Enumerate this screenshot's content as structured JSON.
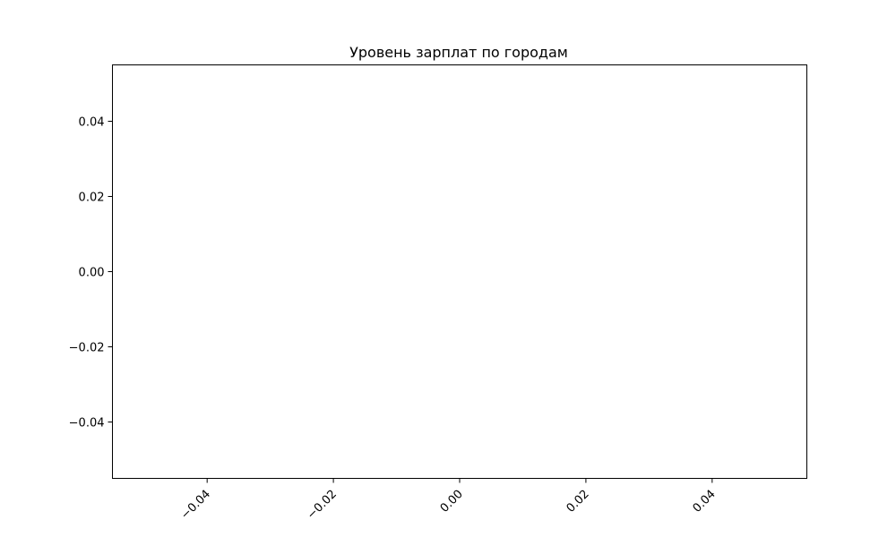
{
  "chart_data": {
    "type": "bar",
    "title": "Уровень зарплат по городам",
    "xlabel": "",
    "ylabel": "",
    "categories": [],
    "values": [],
    "xlim": [
      -0.055,
      0.055
    ],
    "ylim": [
      -0.055,
      0.055
    ],
    "x_ticks": [
      -0.04,
      -0.02,
      0.0,
      0.02,
      0.04
    ],
    "x_tick_labels": [
      "−0.04",
      "−0.02",
      "0.00",
      "0.02",
      "0.04"
    ],
    "x_tick_rotation_deg": 45,
    "y_ticks": [
      -0.04,
      -0.02,
      0.0,
      0.02,
      0.04
    ],
    "y_tick_labels": [
      "−0.04",
      "−0.02",
      "0.00",
      "0.02",
      "0.04"
    ],
    "grid": false,
    "legend": "none",
    "colors": {
      "frame": "#000000",
      "background": "#ffffff",
      "text": "#000000"
    }
  }
}
